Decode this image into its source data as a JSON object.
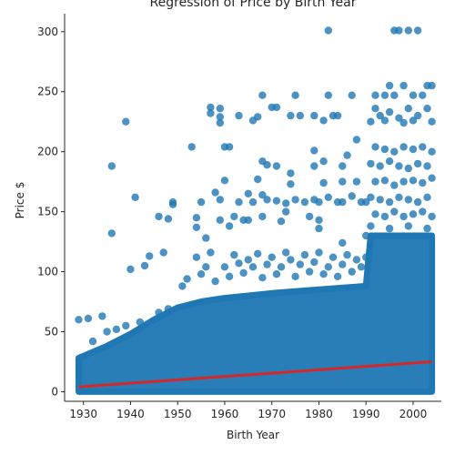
{
  "chart_data": {
    "type": "scatter",
    "title": "Regression of Price by Birth Year",
    "xlabel": "Birth Year",
    "ylabel": "Price $",
    "xlim": [
      1926,
      2006
    ],
    "ylim": [
      -8,
      315
    ],
    "x_ticks": [
      1930,
      1940,
      1950,
      1960,
      1970,
      1980,
      1990,
      2000
    ],
    "y_ticks": [
      0,
      50,
      100,
      150,
      200,
      250,
      300
    ],
    "grid": false,
    "point_color": "#1f77b4",
    "line_color": "#d62728",
    "band_color": "#1f77b4",
    "regression": {
      "x": [
        1929,
        2004
      ],
      "y": [
        4,
        25
      ]
    },
    "dense_band": [
      {
        "x": 1929,
        "low": 0,
        "high": 28
      },
      {
        "x": 1935,
        "low": 0,
        "high": 38
      },
      {
        "x": 1940,
        "low": 0,
        "high": 48
      },
      {
        "x": 1945,
        "low": 0,
        "high": 60
      },
      {
        "x": 1950,
        "low": 0,
        "high": 70
      },
      {
        "x": 1955,
        "low": 0,
        "high": 75
      },
      {
        "x": 1960,
        "low": 0,
        "high": 78
      },
      {
        "x": 1970,
        "low": 0,
        "high": 82
      },
      {
        "x": 1980,
        "low": 0,
        "high": 85
      },
      {
        "x": 1990,
        "low": 0,
        "high": 88
      },
      {
        "x": 1991,
        "low": 0,
        "high": 130
      },
      {
        "x": 2004,
        "low": 0,
        "high": 130
      }
    ],
    "series": [
      {
        "name": "Price",
        "points": [
          [
            1929,
            60
          ],
          [
            1931,
            61
          ],
          [
            1934,
            63
          ],
          [
            1936,
            188
          ],
          [
            1936,
            132
          ],
          [
            1939,
            225
          ],
          [
            1940,
            102
          ],
          [
            1941,
            162
          ],
          [
            1943,
            105
          ],
          [
            1944,
            113
          ],
          [
            1946,
            146
          ],
          [
            1947,
            116
          ],
          [
            1948,
            144
          ],
          [
            1949,
            158
          ],
          [
            1949,
            156
          ],
          [
            1953,
            204
          ],
          [
            1954,
            137
          ],
          [
            1954,
            145
          ],
          [
            1955,
            158
          ],
          [
            1956,
            128
          ],
          [
            1957,
            237
          ],
          [
            1957,
            232
          ],
          [
            1958,
            166
          ],
          [
            1959,
            236
          ],
          [
            1959,
            229
          ],
          [
            1959,
            224
          ],
          [
            1959,
            160
          ],
          [
            1959,
            143
          ],
          [
            1960,
            204
          ],
          [
            1960,
            176
          ],
          [
            1961,
            204
          ],
          [
            1961,
            138
          ],
          [
            1962,
            146
          ],
          [
            1963,
            230
          ],
          [
            1963,
            158
          ],
          [
            1964,
            143
          ],
          [
            1965,
            165
          ],
          [
            1965,
            143
          ],
          [
            1966,
            226
          ],
          [
            1966,
            158
          ],
          [
            1967,
            177
          ],
          [
            1967,
            229
          ],
          [
            1968,
            247
          ],
          [
            1968,
            192
          ],
          [
            1968,
            164
          ],
          [
            1968,
            146
          ],
          [
            1969,
            189
          ],
          [
            1969,
            160
          ],
          [
            1970,
            237
          ],
          [
            1971,
            237
          ],
          [
            1971,
            188
          ],
          [
            1971,
            159
          ],
          [
            1972,
            142
          ],
          [
            1973,
            157
          ],
          [
            1973,
            150
          ],
          [
            1974,
            230
          ],
          [
            1974,
            182
          ],
          [
            1974,
            173
          ],
          [
            1975,
            247
          ],
          [
            1975,
            160
          ],
          [
            1976,
            230
          ],
          [
            1977,
            158
          ],
          [
            1978,
            146
          ],
          [
            1979,
            230
          ],
          [
            1979,
            201
          ],
          [
            1979,
            188
          ],
          [
            1979,
            160
          ],
          [
            1980,
            158
          ],
          [
            1980,
            143
          ],
          [
            1980,
            136
          ],
          [
            1981,
            226
          ],
          [
            1981,
            192
          ],
          [
            1981,
            174
          ],
          [
            1982,
            301
          ],
          [
            1982,
            247
          ],
          [
            1982,
            162
          ],
          [
            1983,
            230
          ],
          [
            1984,
            230
          ],
          [
            1984,
            158
          ],
          [
            1985,
            188
          ],
          [
            1985,
            175
          ],
          [
            1985,
            158
          ],
          [
            1985,
            124
          ],
          [
            1986,
            197
          ],
          [
            1987,
            247
          ],
          [
            1987,
            163
          ],
          [
            1988,
            210
          ],
          [
            1988,
            175
          ],
          [
            1989,
            158
          ],
          [
            1990,
            158
          ],
          [
            1990,
            130
          ],
          [
            1996,
            301
          ],
          [
            1997,
            301
          ],
          [
            1999,
            301
          ],
          [
            2001,
            301
          ],
          [
            1995,
            255
          ],
          [
            1998,
            255
          ],
          [
            2003,
            255
          ],
          [
            2004,
            255
          ],
          [
            1992,
            247
          ],
          [
            1994,
            247
          ],
          [
            1996,
            247
          ],
          [
            2000,
            247
          ],
          [
            2002,
            247
          ],
          [
            1992,
            236
          ],
          [
            1993,
            230
          ],
          [
            1995,
            233
          ],
          [
            1997,
            228
          ],
          [
            1999,
            236
          ],
          [
            2001,
            230
          ],
          [
            2003,
            236
          ],
          [
            1991,
            225
          ],
          [
            1994,
            226
          ],
          [
            1998,
            224
          ],
          [
            2000,
            226
          ],
          [
            2004,
            225
          ],
          [
            1992,
            204
          ],
          [
            1994,
            202
          ],
          [
            1996,
            200
          ],
          [
            1998,
            204
          ],
          [
            2000,
            202
          ],
          [
            2002,
            204
          ],
          [
            2004,
            200
          ],
          [
            1991,
            190
          ],
          [
            1993,
            188
          ],
          [
            1995,
            192
          ],
          [
            1997,
            188
          ],
          [
            1999,
            186
          ],
          [
            2001,
            190
          ],
          [
            2003,
            188
          ],
          [
            1992,
            175
          ],
          [
            1994,
            176
          ],
          [
            1996,
            172
          ],
          [
            1998,
            175
          ],
          [
            2000,
            176
          ],
          [
            2002,
            174
          ],
          [
            2004,
            178
          ],
          [
            1991,
            162
          ],
          [
            1993,
            160
          ],
          [
            1995,
            158
          ],
          [
            1997,
            162
          ],
          [
            1999,
            160
          ],
          [
            2001,
            158
          ],
          [
            2003,
            162
          ],
          [
            1992,
            148
          ],
          [
            1994,
            146
          ],
          [
            1996,
            150
          ],
          [
            1998,
            146
          ],
          [
            2000,
            148
          ],
          [
            2002,
            150
          ],
          [
            2004,
            146
          ],
          [
            1991,
            138
          ],
          [
            1995,
            136
          ],
          [
            1999,
            138
          ],
          [
            2003,
            136
          ],
          [
            1932,
            42
          ],
          [
            1935,
            50
          ],
          [
            1937,
            52
          ],
          [
            1939,
            55
          ],
          [
            1942,
            58
          ],
          [
            1946,
            66
          ],
          [
            1948,
            69
          ],
          [
            1951,
            88
          ],
          [
            1952,
            94
          ],
          [
            1954,
            112
          ],
          [
            1955,
            98
          ],
          [
            1956,
            104
          ],
          [
            1957,
            116
          ],
          [
            1958,
            92
          ],
          [
            1960,
            104
          ],
          [
            1961,
            96
          ],
          [
            1962,
            114
          ],
          [
            1963,
            107
          ],
          [
            1964,
            99
          ],
          [
            1965,
            110
          ],
          [
            1966,
            104
          ],
          [
            1967,
            115
          ],
          [
            1968,
            95
          ],
          [
            1969,
            106
          ],
          [
            1970,
            112
          ],
          [
            1971,
            98
          ],
          [
            1972,
            104
          ],
          [
            1973,
            116
          ],
          [
            1974,
            110
          ],
          [
            1975,
            96
          ],
          [
            1976,
            106
          ],
          [
            1977,
            114
          ],
          [
            1978,
            100
          ],
          [
            1979,
            108
          ],
          [
            1980,
            116
          ],
          [
            1981,
            98
          ],
          [
            1982,
            104
          ],
          [
            1983,
            112
          ],
          [
            1984,
            96
          ],
          [
            1985,
            106
          ],
          [
            1986,
            114
          ],
          [
            1987,
            100
          ],
          [
            1988,
            110
          ],
          [
            1989,
            104
          ],
          [
            1990,
            112
          ]
        ]
      }
    ]
  }
}
